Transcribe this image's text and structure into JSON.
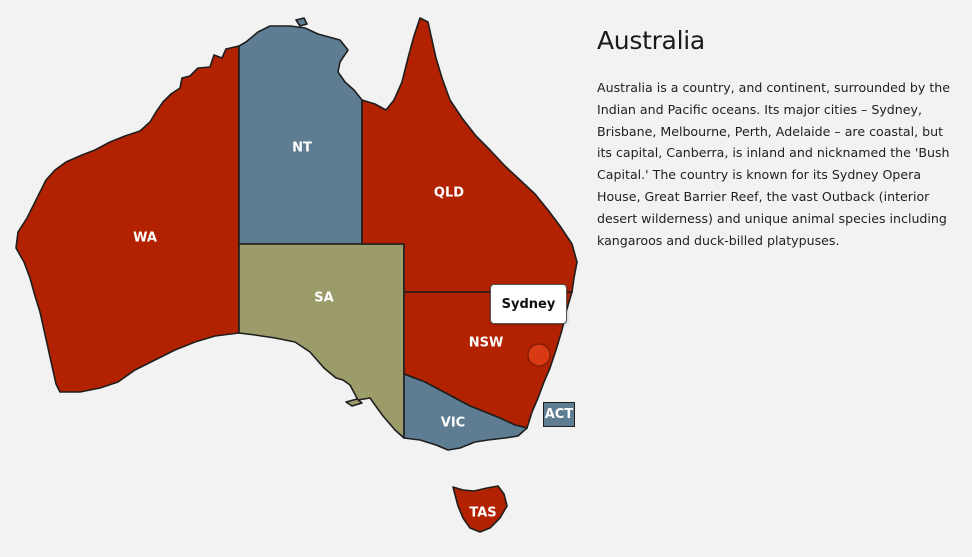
{
  "title": "Australia",
  "description": "Australia is a country, and continent, surrounded by the Indian and Pacific oceans. Its major cities – Sydney, Brisbane, Melbourne, Perth, Adelaide – are coastal, but its capital, Canberra, is inland and nicknamed the 'Bush Capital.' The country is known for its Sydney Opera House, Great Barrier Reef, the vast Outback (interior desert wilderness) and unique animal species including kangaroos and duck-billed platypuses.",
  "colors": {
    "red": "#b22200",
    "blue": "#5e7d93",
    "olive": "#9c9b6a",
    "marker": "#d93a14"
  },
  "states": {
    "wa": "WA",
    "nt": "NT",
    "sa": "SA",
    "qld": "QLD",
    "nsw": "NSW",
    "vic": "VIC",
    "tas": "TAS",
    "act": "ACT"
  },
  "tooltip": {
    "label": "Sydney"
  }
}
